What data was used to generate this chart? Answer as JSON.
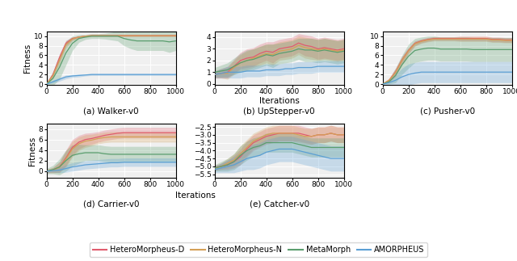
{
  "colors": {
    "hetero_d": "#e05c6e",
    "hetero_n": "#d4a056",
    "metamorph": "#5a9e6e",
    "amorpheus": "#5b9fd4"
  },
  "alpha_fill": 0.28,
  "walker": {
    "title": "(a) Walker-v0",
    "ylabel": "Fitness",
    "ylim": [
      -0.2,
      11
    ],
    "yticks": [
      0,
      2,
      4,
      6,
      8,
      10
    ],
    "x": [
      0,
      50,
      100,
      150,
      200,
      250,
      300,
      350,
      400,
      450,
      500,
      550,
      600,
      650,
      700,
      750,
      800,
      850,
      900,
      950,
      1000
    ],
    "hetero_d_mean": [
      0.0,
      2.0,
      5.5,
      8.5,
      9.5,
      9.8,
      10.0,
      10.1,
      10.1,
      10.1,
      10.1,
      10.1,
      10.1,
      10.1,
      10.1,
      10.1,
      10.1,
      10.1,
      10.1,
      10.1,
      10.1
    ],
    "hetero_d_std": [
      0.0,
      0.5,
      0.8,
      0.6,
      0.3,
      0.2,
      0.2,
      0.2,
      0.2,
      0.2,
      0.2,
      0.2,
      0.2,
      0.2,
      0.2,
      0.2,
      0.2,
      0.2,
      0.2,
      0.2,
      0.2
    ],
    "hetero_n_mean": [
      0.0,
      1.8,
      5.0,
      8.2,
      9.4,
      9.8,
      10.0,
      10.1,
      10.1,
      10.1,
      10.1,
      10.1,
      10.1,
      10.1,
      10.1,
      10.1,
      10.1,
      10.1,
      10.1,
      10.1,
      10.1
    ],
    "hetero_n_std": [
      0.0,
      0.6,
      1.0,
      0.7,
      0.4,
      0.2,
      0.2,
      0.2,
      0.2,
      0.2,
      0.2,
      0.2,
      0.2,
      0.2,
      0.2,
      0.2,
      0.2,
      0.2,
      0.2,
      0.2,
      0.2
    ],
    "metamorph_mean": [
      0.0,
      1.2,
      3.5,
      6.5,
      8.5,
      9.5,
      9.8,
      10.0,
      10.0,
      10.0,
      10.0,
      10.0,
      9.5,
      9.2,
      9.0,
      9.0,
      9.0,
      9.0,
      9.0,
      8.8,
      9.0
    ],
    "metamorph_std": [
      0.0,
      1.5,
      2.5,
      2.5,
      1.5,
      0.8,
      0.5,
      0.5,
      0.5,
      0.6,
      0.8,
      1.0,
      1.5,
      1.8,
      2.0,
      2.0,
      2.0,
      2.0,
      2.0,
      2.2,
      2.0
    ],
    "amorpheus_mean": [
      0.0,
      0.5,
      1.0,
      1.5,
      1.7,
      1.8,
      1.9,
      2.0,
      2.0,
      2.0,
      2.0,
      2.0,
      2.0,
      2.0,
      2.0,
      2.0,
      2.0,
      2.0,
      2.0,
      2.0,
      2.0
    ],
    "amorpheus_std": [
      0.0,
      0.3,
      0.4,
      0.4,
      0.3,
      0.3,
      0.2,
      0.2,
      0.2,
      0.2,
      0.2,
      0.2,
      0.2,
      0.2,
      0.2,
      0.2,
      0.2,
      0.2,
      0.2,
      0.2,
      0.2
    ]
  },
  "upstepper": {
    "title": "(b) UpStepper-v0",
    "ylabel": "",
    "ylim": [
      -0.1,
      4.5
    ],
    "yticks": [
      0,
      1,
      2,
      3,
      4
    ],
    "x": [
      0,
      50,
      100,
      150,
      200,
      250,
      300,
      350,
      400,
      450,
      500,
      550,
      600,
      650,
      700,
      750,
      800,
      850,
      900,
      950,
      1000
    ],
    "hetero_d_mean": [
      0.8,
      0.9,
      1.0,
      1.5,
      2.0,
      2.2,
      2.3,
      2.6,
      2.8,
      2.7,
      3.0,
      3.1,
      3.2,
      3.5,
      3.3,
      3.2,
      3.0,
      3.1,
      3.0,
      2.9,
      3.0
    ],
    "hetero_d_std": [
      0.3,
      0.4,
      0.5,
      0.6,
      0.7,
      0.8,
      0.8,
      0.8,
      0.8,
      0.9,
      0.8,
      0.8,
      0.8,
      0.8,
      0.9,
      0.9,
      0.9,
      0.9,
      0.9,
      0.9,
      0.9
    ],
    "hetero_n_mean": [
      0.8,
      0.9,
      0.9,
      1.4,
      1.8,
      2.0,
      2.2,
      2.4,
      2.6,
      2.5,
      2.8,
      2.9,
      3.0,
      3.3,
      3.1,
      3.0,
      2.9,
      3.0,
      2.9,
      2.8,
      2.9
    ],
    "hetero_n_std": [
      0.3,
      0.4,
      0.5,
      0.6,
      0.7,
      0.8,
      0.8,
      0.8,
      0.8,
      0.9,
      0.8,
      0.8,
      0.8,
      0.8,
      0.9,
      0.9,
      0.9,
      0.9,
      0.9,
      0.9,
      0.9
    ],
    "metamorph_mean": [
      1.0,
      1.1,
      1.2,
      1.5,
      1.8,
      2.0,
      2.1,
      2.3,
      2.5,
      2.4,
      2.6,
      2.7,
      2.8,
      3.0,
      2.9,
      2.9,
      2.8,
      2.9,
      2.8,
      2.7,
      2.8
    ],
    "metamorph_std": [
      0.4,
      0.5,
      0.6,
      0.7,
      0.8,
      0.9,
      0.9,
      0.9,
      0.9,
      1.0,
      0.9,
      0.9,
      0.9,
      0.9,
      1.0,
      1.0,
      1.0,
      1.0,
      1.0,
      1.0,
      1.0
    ],
    "amorpheus_mean": [
      0.8,
      0.9,
      1.0,
      1.0,
      1.0,
      1.1,
      1.1,
      1.1,
      1.2,
      1.2,
      1.2,
      1.3,
      1.3,
      1.4,
      1.4,
      1.4,
      1.5,
      1.5,
      1.5,
      1.5,
      1.5
    ],
    "amorpheus_std": [
      0.3,
      0.4,
      0.5,
      0.5,
      0.5,
      0.5,
      0.5,
      0.5,
      0.5,
      0.5,
      0.5,
      0.5,
      0.5,
      0.5,
      0.5,
      0.5,
      0.5,
      0.5,
      0.5,
      0.5,
      0.5
    ]
  },
  "pusher": {
    "title": "(c) Pusher-v0",
    "ylabel": "",
    "ylim": [
      -0.2,
      11
    ],
    "yticks": [
      0,
      2,
      4,
      6,
      8,
      10
    ],
    "x": [
      0,
      50,
      100,
      150,
      200,
      250,
      300,
      350,
      400,
      450,
      500,
      550,
      600,
      650,
      700,
      750,
      800,
      850,
      900,
      950,
      1000
    ],
    "hetero_d_mean": [
      0.0,
      0.8,
      2.5,
      5.0,
      7.0,
      8.5,
      9.0,
      9.3,
      9.5,
      9.5,
      9.5,
      9.5,
      9.5,
      9.5,
      9.5,
      9.5,
      9.5,
      9.3,
      9.3,
      9.2,
      9.2
    ],
    "hetero_d_std": [
      0.0,
      0.4,
      0.8,
      0.8,
      0.6,
      0.5,
      0.4,
      0.4,
      0.4,
      0.4,
      0.4,
      0.4,
      0.5,
      0.5,
      0.5,
      0.5,
      0.5,
      0.5,
      0.5,
      0.5,
      0.5
    ],
    "hetero_n_mean": [
      0.0,
      0.8,
      2.4,
      4.9,
      6.9,
      8.4,
      8.9,
      9.2,
      9.4,
      9.4,
      9.4,
      9.4,
      9.4,
      9.4,
      9.4,
      9.4,
      9.4,
      9.2,
      9.2,
      9.1,
      9.1
    ],
    "hetero_n_std": [
      0.0,
      0.4,
      0.8,
      0.8,
      0.6,
      0.5,
      0.4,
      0.4,
      0.4,
      0.4,
      0.4,
      0.4,
      0.5,
      0.5,
      0.5,
      0.5,
      0.5,
      0.5,
      0.5,
      0.5,
      0.5
    ],
    "metamorph_mean": [
      0.0,
      0.5,
      1.8,
      4.0,
      5.8,
      7.0,
      7.3,
      7.5,
      7.5,
      7.3,
      7.3,
      7.3,
      7.3,
      7.3,
      7.2,
      7.2,
      7.2,
      7.2,
      7.2,
      7.2,
      7.2
    ],
    "metamorph_std": [
      0.0,
      0.5,
      1.5,
      2.0,
      2.5,
      2.5,
      2.5,
      2.5,
      2.5,
      2.5,
      2.5,
      2.5,
      2.5,
      2.5,
      2.5,
      2.5,
      2.5,
      2.5,
      2.5,
      2.5,
      2.5
    ],
    "amorpheus_mean": [
      0.0,
      0.3,
      0.8,
      1.5,
      2.0,
      2.3,
      2.5,
      2.5,
      2.5,
      2.5,
      2.5,
      2.5,
      2.5,
      2.5,
      2.5,
      2.5,
      2.5,
      2.5,
      2.5,
      2.5,
      2.5
    ],
    "amorpheus_std": [
      0.0,
      0.4,
      1.0,
      1.8,
      2.2,
      2.2,
      2.2,
      2.2,
      2.2,
      2.2,
      2.2,
      2.2,
      2.2,
      2.2,
      2.2,
      2.2,
      2.2,
      2.2,
      2.2,
      2.2,
      2.2
    ]
  },
  "carrier": {
    "title": "(d) Carrier-v0",
    "ylabel": "Fitness",
    "ylim": [
      -1.2,
      9
    ],
    "yticks": [
      0,
      2,
      4,
      6,
      8
    ],
    "x": [
      0,
      50,
      100,
      150,
      200,
      250,
      300,
      350,
      400,
      450,
      500,
      550,
      600,
      650,
      700,
      750,
      800,
      850,
      900,
      950,
      1000
    ],
    "hetero_d_mean": [
      0.0,
      0.2,
      0.8,
      2.5,
      4.5,
      5.5,
      6.0,
      6.2,
      6.5,
      6.8,
      7.0,
      7.2,
      7.3,
      7.3,
      7.3,
      7.3,
      7.3,
      7.3,
      7.3,
      7.3,
      7.3
    ],
    "hetero_d_std": [
      0.3,
      0.5,
      1.0,
      1.5,
      1.5,
      1.3,
      1.2,
      1.1,
      1.0,
      1.0,
      1.0,
      1.0,
      1.0,
      1.0,
      1.0,
      1.0,
      1.0,
      1.0,
      1.0,
      1.0,
      1.0
    ],
    "hetero_n_mean": [
      0.0,
      0.2,
      0.7,
      2.3,
      4.2,
      5.2,
      5.7,
      5.9,
      6.2,
      6.4,
      6.5,
      6.5,
      6.5,
      6.5,
      6.5,
      6.5,
      6.5,
      6.5,
      6.5,
      6.5,
      6.5
    ],
    "hetero_n_std": [
      0.3,
      0.5,
      1.0,
      1.5,
      1.5,
      1.3,
      1.2,
      1.1,
      1.0,
      1.0,
      1.0,
      1.0,
      1.0,
      1.0,
      1.0,
      1.0,
      1.0,
      1.0,
      1.0,
      1.0,
      1.0
    ],
    "metamorph_mean": [
      0.0,
      0.3,
      0.8,
      2.0,
      3.0,
      3.3,
      3.5,
      3.5,
      3.5,
      3.3,
      3.2,
      3.2,
      3.2,
      3.2,
      3.2,
      3.2,
      3.2,
      3.2,
      3.2,
      3.2,
      3.2
    ],
    "metamorph_std": [
      0.5,
      0.8,
      1.5,
      2.0,
      2.0,
      1.8,
      1.5,
      1.5,
      1.5,
      1.5,
      1.5,
      1.5,
      1.5,
      1.5,
      1.5,
      1.5,
      1.5,
      1.5,
      1.5,
      1.5,
      1.5
    ],
    "amorpheus_mean": [
      0.0,
      0.1,
      0.2,
      0.5,
      0.8,
      1.0,
      1.2,
      1.3,
      1.4,
      1.5,
      1.6,
      1.6,
      1.7,
      1.7,
      1.7,
      1.7,
      1.7,
      1.7,
      1.7,
      1.7,
      1.7
    ],
    "amorpheus_std": [
      0.2,
      0.3,
      0.5,
      0.7,
      0.8,
      0.8,
      0.8,
      0.8,
      0.8,
      0.8,
      0.8,
      0.8,
      0.8,
      0.8,
      0.8,
      0.8,
      0.8,
      0.8,
      0.8,
      0.8,
      0.8
    ]
  },
  "catcher": {
    "title": "(e) Catcher-v0",
    "ylabel": "",
    "ylim": [
      -5.7,
      -2.3
    ],
    "yticks": [
      -5.5,
      -5.0,
      -4.5,
      -4.0,
      -3.5,
      -3.0,
      -2.5
    ],
    "x": [
      0,
      50,
      100,
      150,
      200,
      250,
      300,
      350,
      400,
      450,
      500,
      550,
      600,
      650,
      700,
      750,
      800,
      850,
      900,
      950,
      1000
    ],
    "hetero_d_mean": [
      -5.1,
      -5.0,
      -4.9,
      -4.7,
      -4.4,
      -3.9,
      -3.5,
      -3.3,
      -3.1,
      -3.0,
      -2.9,
      -2.9,
      -2.9,
      -2.9,
      -3.0,
      -3.1,
      -3.0,
      -3.0,
      -2.9,
      -3.0,
      -3.0
    ],
    "hetero_d_std": [
      0.15,
      0.2,
      0.3,
      0.4,
      0.5,
      0.5,
      0.5,
      0.5,
      0.5,
      0.5,
      0.5,
      0.5,
      0.5,
      0.5,
      0.5,
      0.5,
      0.5,
      0.5,
      0.5,
      0.5,
      0.5
    ],
    "hetero_n_mean": [
      -5.1,
      -5.0,
      -4.8,
      -4.6,
      -4.2,
      -3.8,
      -3.4,
      -3.2,
      -3.0,
      -2.9,
      -2.9,
      -2.9,
      -2.9,
      -3.0,
      -3.1,
      -3.1,
      -3.0,
      -3.0,
      -2.9,
      -3.0,
      -3.0
    ],
    "hetero_n_std": [
      0.15,
      0.2,
      0.3,
      0.4,
      0.5,
      0.5,
      0.5,
      0.5,
      0.5,
      0.5,
      0.5,
      0.5,
      0.5,
      0.5,
      0.5,
      0.5,
      0.5,
      0.5,
      0.5,
      0.5,
      0.5
    ],
    "metamorph_mean": [
      -5.1,
      -5.0,
      -4.9,
      -4.7,
      -4.3,
      -4.0,
      -3.8,
      -3.7,
      -3.5,
      -3.5,
      -3.5,
      -3.5,
      -3.5,
      -3.6,
      -3.7,
      -3.8,
      -3.8,
      -3.8,
      -3.8,
      -3.8,
      -3.8
    ],
    "metamorph_std": [
      0.2,
      0.3,
      0.4,
      0.5,
      0.6,
      0.6,
      0.6,
      0.6,
      0.6,
      0.6,
      0.6,
      0.6,
      0.6,
      0.6,
      0.6,
      0.6,
      0.6,
      0.6,
      0.6,
      0.6,
      0.6
    ],
    "amorpheus_mean": [
      -5.2,
      -5.1,
      -5.0,
      -4.9,
      -4.7,
      -4.5,
      -4.4,
      -4.3,
      -4.1,
      -4.0,
      -3.9,
      -3.9,
      -3.9,
      -4.0,
      -4.1,
      -4.2,
      -4.3,
      -4.4,
      -4.5,
      -4.5,
      -4.5
    ],
    "amorpheus_std": [
      0.2,
      0.3,
      0.4,
      0.5,
      0.6,
      0.7,
      0.8,
      0.8,
      0.8,
      0.8,
      0.8,
      0.8,
      0.8,
      0.8,
      0.8,
      0.8,
      0.8,
      0.8,
      0.8,
      0.8,
      0.8
    ]
  },
  "legend_labels": [
    "HeteroMorpheus-D",
    "HeteroMorpheus-N",
    "MetaMorph",
    "AMORPHEUS"
  ],
  "xlabel": "Iterations",
  "bg_color": "#f0f0f0"
}
